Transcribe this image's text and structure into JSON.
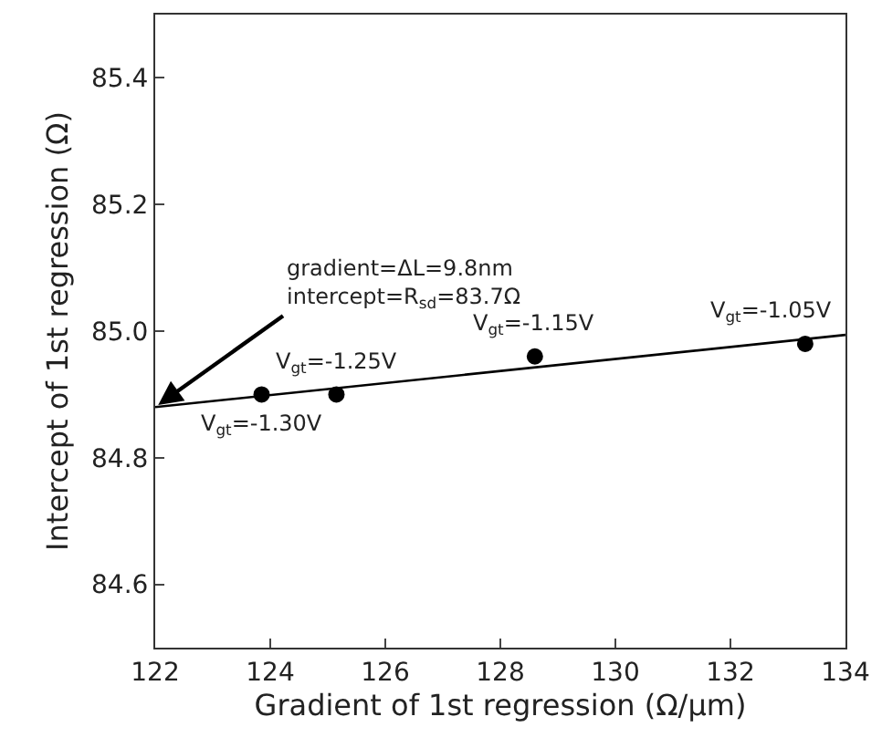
{
  "chart_data": {
    "type": "scatter",
    "xlabel": "Gradient of 1st regression (Ω/μm)",
    "ylabel": "Intercept of 1st regression (Ω)",
    "xlim": [
      122,
      134
    ],
    "xticks": [
      122,
      124,
      126,
      128,
      130,
      132,
      134
    ],
    "ylim": [
      84.5,
      85.5
    ],
    "yticks": [
      84.6,
      84.8,
      {
        "value": 85.0,
        "label": "85.0"
      },
      85.2,
      85.4
    ],
    "marker": "circle",
    "series": [
      {
        "color": "#000000",
        "x": [
          123.85,
          125.15,
          128.6,
          133.3
        ],
        "values": [
          84.9,
          84.9,
          84.96,
          84.98
        ]
      },
      {
        "type": "line",
        "color": "#000000",
        "x": [
          122,
          134
        ],
        "values": [
          84.88,
          84.994
        ],
        "marker": "none",
        "line_style": "solid"
      }
    ],
    "annotations": [
      {
        "text": "V$_{gt}$=-1.30V",
        "x": 123.85,
        "y": 84.9
      },
      {
        "text": "V$_{gt}$=-1.25V",
        "x": 125.15,
        "y": 84.9
      },
      {
        "text": "V$_{gt}$=-1.15V",
        "x": 128.6,
        "y": 84.96
      },
      {
        "text": "V$_{gt}$=-1.05V",
        "x": 133.3,
        "y": 84.98
      },
      {
        "text": "gradient=ΔL=9.8nm\nintercept=R$_{sd}$=83.7Ω",
        "x": 122,
        "y": 84.88
      }
    ]
  }
}
